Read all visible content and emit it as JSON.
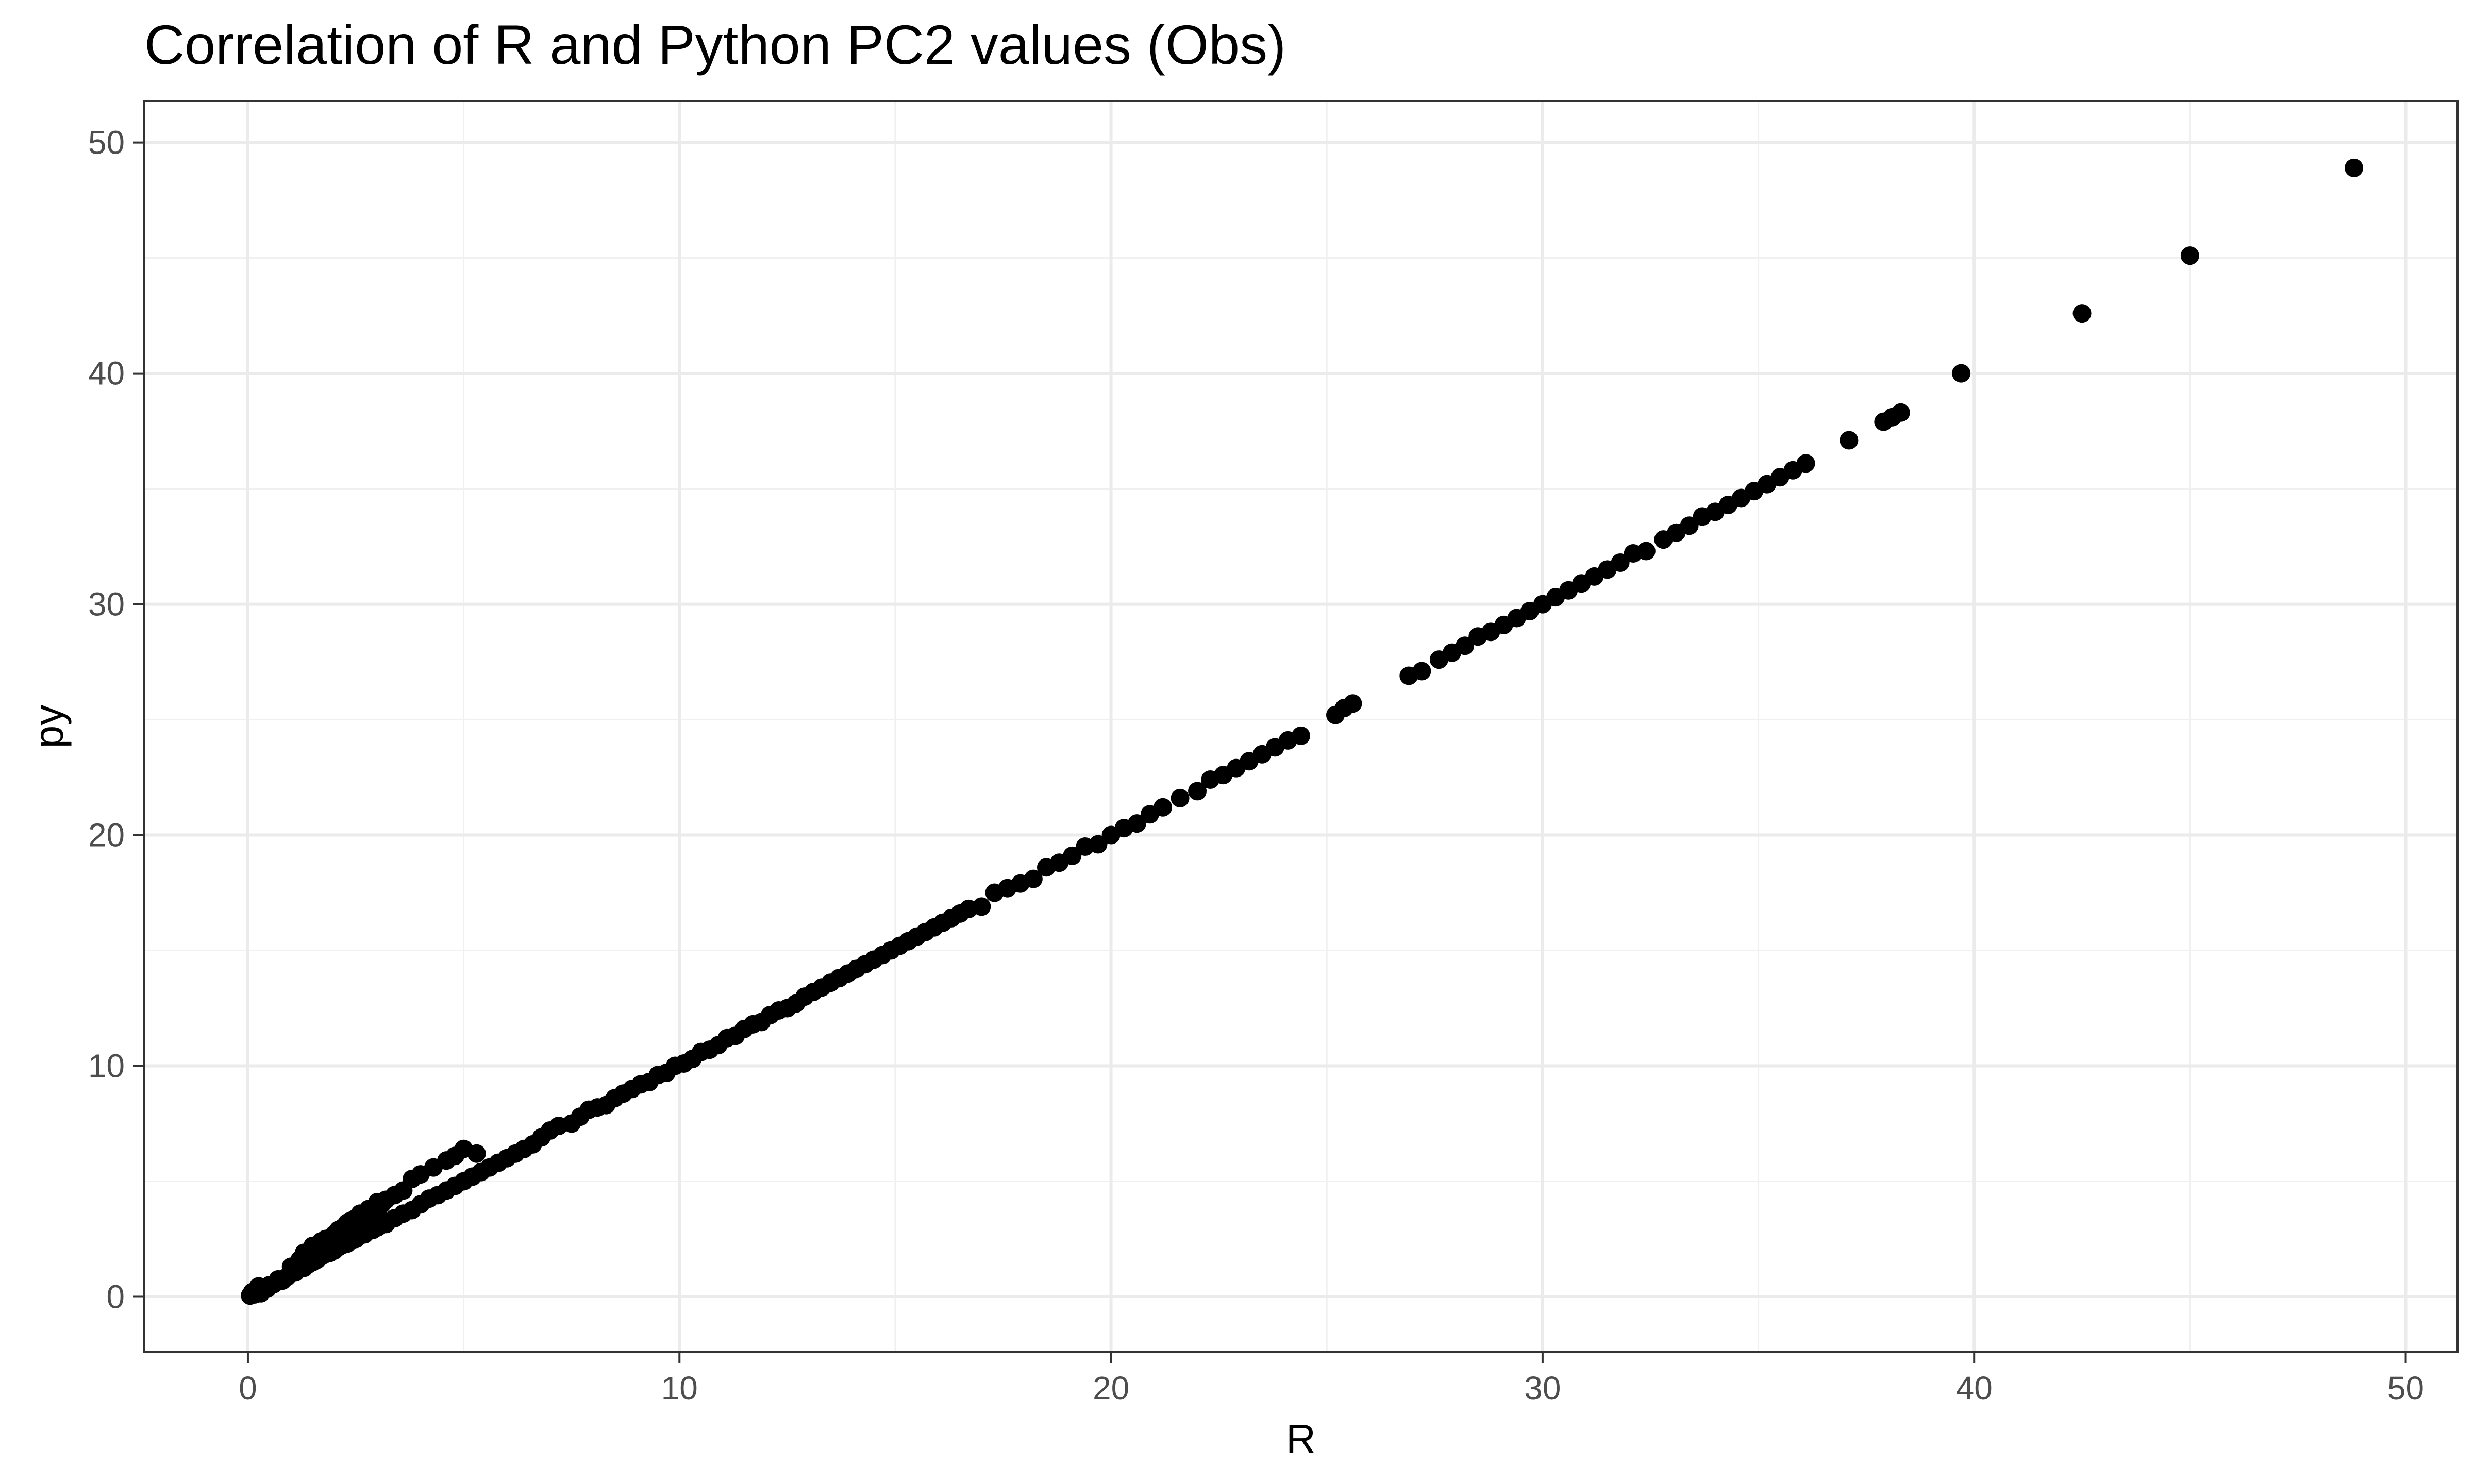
{
  "chart_data": {
    "type": "scatter",
    "title": "Correlation of R and Python PC2 values (Obs)",
    "xlabel": "R",
    "ylabel": "py",
    "xlim": [
      -2.4,
      51.2
    ],
    "ylim": [
      -2.4,
      51.8
    ],
    "x_ticks": [
      0,
      10,
      20,
      30,
      40,
      50
    ],
    "y_ticks": [
      0,
      10,
      20,
      30,
      40,
      50
    ],
    "grid": true,
    "legend": "none",
    "point_color": "#000000",
    "series": [
      {
        "points": [
          [
            0.05,
            0.05
          ],
          [
            0.1,
            0.2
          ],
          [
            0.15,
            0.1
          ],
          [
            0.2,
            0.3
          ],
          [
            0.25,
            0.45
          ],
          [
            0.3,
            0.15
          ],
          [
            0.35,
            0.3
          ],
          [
            0.4,
            0.4
          ],
          [
            0.45,
            0.35
          ],
          [
            0.5,
            0.5
          ],
          [
            0.6,
            0.55
          ],
          [
            0.7,
            0.75
          ],
          [
            0.8,
            0.7
          ],
          [
            0.9,
            0.85
          ],
          [
            1.0,
            1.0
          ],
          [
            1.1,
            1.05
          ],
          [
            1.2,
            1.35
          ],
          [
            1.3,
            1.25
          ],
          [
            1.4,
            1.4
          ],
          [
            1.5,
            1.5
          ],
          [
            1.6,
            1.6
          ],
          [
            1.7,
            1.75
          ],
          [
            1.8,
            1.85
          ],
          [
            1.9,
            1.9
          ],
          [
            2.0,
            2.0
          ],
          [
            2.1,
            2.15
          ],
          [
            2.2,
            2.25
          ],
          [
            2.3,
            2.3
          ],
          [
            2.4,
            2.45
          ],
          [
            2.5,
            2.5
          ],
          [
            2.6,
            2.65
          ],
          [
            2.7,
            2.7
          ],
          [
            2.8,
            2.85
          ],
          [
            2.9,
            2.9
          ],
          [
            3.0,
            3.0
          ],
          [
            3.2,
            3.15
          ],
          [
            3.4,
            3.4
          ],
          [
            3.6,
            3.6
          ],
          [
            3.8,
            3.75
          ],
          [
            4.0,
            4.0
          ],
          [
            4.2,
            4.25
          ],
          [
            4.4,
            4.4
          ],
          [
            4.6,
            4.6
          ],
          [
            4.8,
            4.8
          ],
          [
            5.0,
            5.0
          ],
          [
            5.2,
            5.2
          ],
          [
            5.4,
            5.4
          ],
          [
            5.6,
            5.6
          ],
          [
            5.8,
            5.8
          ],
          [
            6.0,
            6.0
          ],
          [
            6.2,
            6.2
          ],
          [
            6.4,
            6.4
          ],
          [
            6.6,
            6.6
          ],
          [
            1.0,
            1.3
          ],
          [
            1.2,
            1.6
          ],
          [
            1.4,
            1.9
          ],
          [
            1.5,
            2.2
          ],
          [
            1.6,
            2.0
          ],
          [
            1.7,
            2.4
          ],
          [
            1.8,
            2.5
          ],
          [
            1.9,
            2.3
          ],
          [
            2.0,
            2.7
          ],
          [
            2.1,
            2.9
          ],
          [
            2.2,
            3.0
          ],
          [
            2.3,
            3.2
          ],
          [
            2.4,
            3.3
          ],
          [
            2.5,
            3.4
          ],
          [
            2.6,
            3.6
          ],
          [
            2.8,
            3.8
          ],
          [
            3.0,
            4.1
          ],
          [
            3.2,
            4.2
          ],
          [
            3.4,
            4.4
          ],
          [
            3.6,
            4.6
          ],
          [
            3.8,
            5.1
          ],
          [
            4.0,
            5.3
          ],
          [
            4.3,
            5.6
          ],
          [
            4.6,
            5.9
          ],
          [
            4.8,
            6.1
          ],
          [
            5.0,
            6.4
          ],
          [
            5.3,
            6.2
          ],
          [
            1.3,
            1.9
          ],
          [
            1.5,
            1.7
          ],
          [
            1.8,
            2.2
          ],
          [
            2.0,
            2.4
          ],
          [
            2.2,
            2.7
          ],
          [
            2.4,
            2.9
          ],
          [
            2.6,
            3.1
          ],
          [
            2.8,
            3.5
          ],
          [
            3.0,
            3.6
          ],
          [
            3.1,
            4.0
          ],
          [
            6.8,
            6.9
          ],
          [
            7.0,
            7.2
          ],
          [
            7.2,
            7.4
          ],
          [
            7.5,
            7.5
          ],
          [
            7.7,
            7.8
          ],
          [
            7.9,
            8.1
          ],
          [
            8.1,
            8.2
          ],
          [
            8.3,
            8.3
          ],
          [
            8.5,
            8.6
          ],
          [
            8.7,
            8.8
          ],
          [
            8.9,
            9.0
          ],
          [
            9.1,
            9.2
          ],
          [
            9.3,
            9.3
          ],
          [
            9.5,
            9.6
          ],
          [
            9.7,
            9.7
          ],
          [
            9.9,
            10.0
          ],
          [
            10.1,
            10.1
          ],
          [
            10.3,
            10.3
          ],
          [
            10.5,
            10.6
          ],
          [
            10.7,
            10.7
          ],
          [
            10.9,
            10.9
          ],
          [
            11.1,
            11.2
          ],
          [
            11.3,
            11.3
          ],
          [
            11.5,
            11.6
          ],
          [
            11.7,
            11.8
          ],
          [
            11.9,
            11.9
          ],
          [
            12.1,
            12.2
          ],
          [
            12.3,
            12.4
          ],
          [
            12.5,
            12.5
          ],
          [
            12.7,
            12.7
          ],
          [
            12.9,
            13.0
          ],
          [
            13.1,
            13.2
          ],
          [
            13.3,
            13.4
          ],
          [
            13.5,
            13.6
          ],
          [
            13.7,
            13.8
          ],
          [
            13.9,
            14.0
          ],
          [
            14.1,
            14.2
          ],
          [
            14.3,
            14.4
          ],
          [
            14.5,
            14.6
          ],
          [
            14.7,
            14.8
          ],
          [
            14.9,
            15.0
          ],
          [
            15.1,
            15.2
          ],
          [
            15.3,
            15.4
          ],
          [
            15.5,
            15.6
          ],
          [
            15.7,
            15.8
          ],
          [
            15.9,
            16.0
          ],
          [
            16.1,
            16.2
          ],
          [
            16.3,
            16.4
          ],
          [
            16.5,
            16.6
          ],
          [
            16.7,
            16.8
          ],
          [
            17.0,
            16.9
          ],
          [
            17.3,
            17.5
          ],
          [
            17.6,
            17.7
          ],
          [
            17.9,
            17.9
          ],
          [
            18.2,
            18.1
          ],
          [
            18.5,
            18.6
          ],
          [
            18.8,
            18.8
          ],
          [
            19.1,
            19.1
          ],
          [
            19.4,
            19.5
          ],
          [
            19.7,
            19.6
          ],
          [
            20.0,
            20.0
          ],
          [
            20.3,
            20.3
          ],
          [
            20.6,
            20.5
          ],
          [
            20.9,
            20.9
          ],
          [
            21.2,
            21.2
          ],
          [
            21.6,
            21.6
          ],
          [
            22.0,
            21.9
          ],
          [
            22.3,
            22.4
          ],
          [
            22.6,
            22.6
          ],
          [
            22.9,
            22.9
          ],
          [
            23.2,
            23.2
          ],
          [
            23.5,
            23.5
          ],
          [
            23.8,
            23.8
          ],
          [
            24.1,
            24.1
          ],
          [
            24.4,
            24.3
          ],
          [
            25.2,
            25.2
          ],
          [
            25.4,
            25.5
          ],
          [
            25.6,
            25.7
          ],
          [
            26.9,
            26.9
          ],
          [
            27.2,
            27.1
          ],
          [
            27.6,
            27.6
          ],
          [
            27.9,
            27.9
          ],
          [
            28.2,
            28.2
          ],
          [
            28.5,
            28.6
          ],
          [
            28.8,
            28.8
          ],
          [
            29.1,
            29.1
          ],
          [
            29.4,
            29.4
          ],
          [
            29.7,
            29.7
          ],
          [
            30.0,
            30.0
          ],
          [
            30.3,
            30.3
          ],
          [
            30.6,
            30.6
          ],
          [
            30.9,
            30.9
          ],
          [
            31.2,
            31.2
          ],
          [
            31.5,
            31.5
          ],
          [
            31.8,
            31.8
          ],
          [
            32.1,
            32.2
          ],
          [
            32.4,
            32.3
          ],
          [
            32.8,
            32.8
          ],
          [
            33.1,
            33.1
          ],
          [
            33.4,
            33.4
          ],
          [
            33.7,
            33.8
          ],
          [
            34.0,
            34.0
          ],
          [
            34.3,
            34.3
          ],
          [
            34.6,
            34.6
          ],
          [
            34.9,
            34.9
          ],
          [
            35.2,
            35.2
          ],
          [
            35.5,
            35.5
          ],
          [
            35.8,
            35.8
          ],
          [
            36.1,
            36.1
          ],
          [
            37.1,
            37.1
          ],
          [
            37.9,
            37.9
          ],
          [
            38.1,
            38.1
          ],
          [
            38.3,
            38.3
          ],
          [
            39.7,
            40.0
          ],
          [
            42.5,
            42.6
          ],
          [
            45.0,
            45.1
          ],
          [
            48.8,
            48.9
          ]
        ]
      }
    ]
  }
}
